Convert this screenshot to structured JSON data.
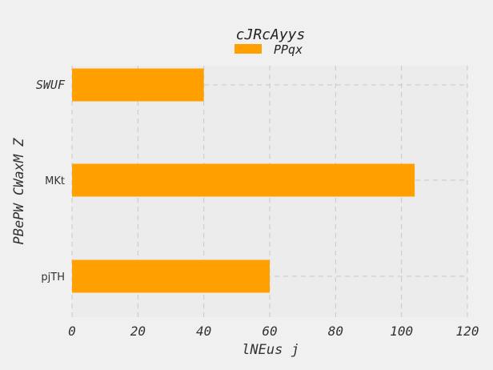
{
  "chart_data": {
    "type": "bar",
    "orientation": "horizontal",
    "title": "cJRcAyys",
    "xlabel": "lNEus j",
    "ylabel": "PBePW CWaxM Z",
    "categories": [
      "SWUF",
      "MKt",
      "pjTH"
    ],
    "series": [
      {
        "name": "PPqx",
        "values": [
          40,
          104,
          60
        ],
        "color": "#ffa000"
      }
    ],
    "xlim": [
      0,
      120
    ],
    "xticks": [
      "0",
      "20",
      "40",
      "60",
      "80",
      "100",
      "120"
    ],
    "grid": true,
    "legend_position": "top-center"
  }
}
